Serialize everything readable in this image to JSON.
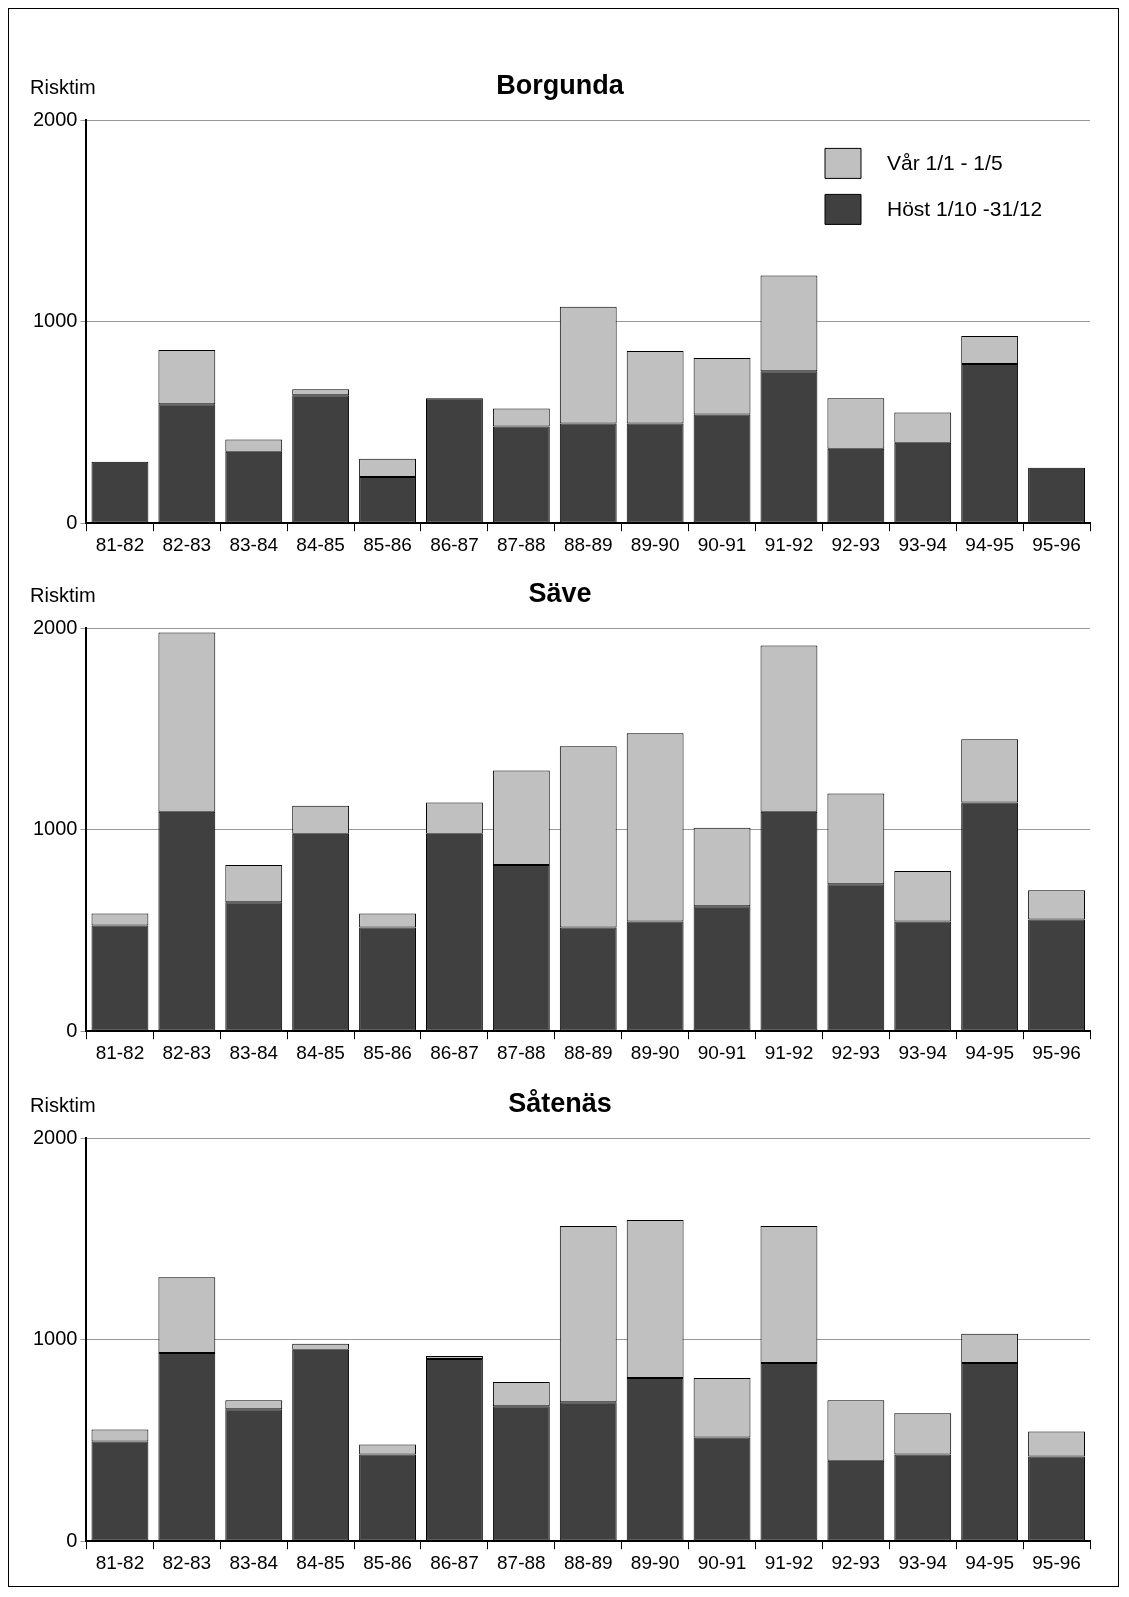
{
  "chart_data": [
    {
      "type": "bar",
      "title": "Borgunda",
      "ylabel": "Risktim",
      "stacked": true,
      "grid": "y",
      "legend": "top right",
      "ylim": [
        0,
        2000
      ],
      "yticks": [
        0,
        1000,
        2000
      ],
      "categories": [
        "81-82",
        "82-83",
        "83-84",
        "84-85",
        "85-86",
        "86-87",
        "87-88",
        "88-89",
        "89-90",
        "90-91",
        "91-92",
        "92-93",
        "93-94",
        "94-95",
        "95-96"
      ],
      "series": [
        {
          "name": "Höst 1/10 -31/12",
          "color": "#404040",
          "values": [
            305,
            590,
            355,
            635,
            230,
            620,
            480,
            495,
            495,
            540,
            755,
            370,
            400,
            790,
            275
          ]
        },
        {
          "name": "Vår 1/1 - 1/5",
          "color": "#c0c0c0",
          "values": [
            0,
            270,
            60,
            30,
            90,
            0,
            90,
            580,
            360,
            280,
            475,
            250,
            150,
            140,
            0
          ]
        }
      ]
    },
    {
      "type": "bar",
      "title": "Säve",
      "ylabel": "Risktim",
      "stacked": true,
      "grid": "y",
      "ylim": [
        0,
        2000
      ],
      "yticks": [
        0,
        1000,
        2000
      ],
      "categories": [
        "81-82",
        "82-83",
        "83-84",
        "84-85",
        "85-86",
        "86-87",
        "87-88",
        "88-89",
        "89-90",
        "90-91",
        "91-92",
        "92-93",
        "93-94",
        "94-95",
        "95-96"
      ],
      "series": [
        {
          "color": "#404040",
          "values": [
            525,
            1090,
            640,
            980,
            515,
            980,
            825,
            515,
            545,
            620,
            1090,
            730,
            545,
            1135,
            555
          ]
        },
        {
          "color": "#c0c0c0",
          "values": [
            60,
            890,
            185,
            140,
            70,
            155,
            470,
            900,
            935,
            390,
            825,
            450,
            250,
            315,
            145
          ]
        }
      ]
    },
    {
      "type": "bar",
      "title": "Såtenäs",
      "ylabel": "Risktim",
      "stacked": true,
      "grid": "y",
      "ylim": [
        0,
        2000
      ],
      "yticks": [
        0,
        1000,
        2000
      ],
      "categories": [
        "81-82",
        "82-83",
        "83-84",
        "84-85",
        "85-86",
        "86-87",
        "87-88",
        "88-89",
        "89-90",
        "90-91",
        "91-92",
        "92-93",
        "93-94",
        "94-95",
        "95-96"
      ],
      "series": [
        {
          "color": "#404040",
          "values": [
            495,
            935,
            655,
            950,
            430,
            905,
            670,
            690,
            810,
            515,
            885,
            400,
            430,
            885,
            420
          ]
        },
        {
          "color": "#c0c0c0",
          "values": [
            60,
            375,
            45,
            30,
            50,
            15,
            120,
            875,
            785,
            295,
            680,
            300,
            205,
            145,
            125
          ]
        }
      ]
    }
  ]
}
